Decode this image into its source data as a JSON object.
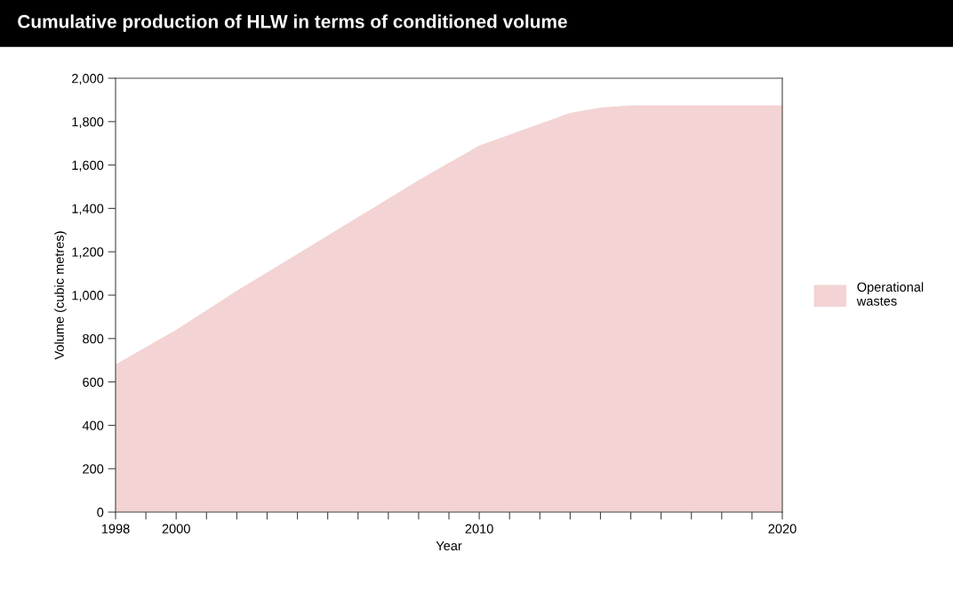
{
  "chart_data": {
    "type": "area",
    "title": "Cumulative production of HLW in terms of conditioned volume",
    "xlabel": "Year",
    "ylabel": "Volume (cubic metres)",
    "x": [
      1998,
      2000,
      2002,
      2004,
      2006,
      2008,
      2010,
      2011,
      2012,
      2013,
      2014,
      2015,
      2020
    ],
    "series": [
      {
        "name": "Operational\nwastes",
        "color": "#f3d3d3",
        "values": [
          680,
          840,
          1020,
          1190,
          1360,
          1530,
          1690,
          1740,
          1790,
          1840,
          1865,
          1875,
          1875
        ]
      }
    ],
    "xlim": [
      1998,
      2020
    ],
    "ylim": [
      0,
      2000
    ],
    "xticks": [
      1998,
      {
        "value": 1999,
        "label": null
      },
      2000,
      {
        "value": 2001,
        "label": null
      },
      {
        "value": 2002,
        "label": null
      },
      {
        "value": 2003,
        "label": null
      },
      {
        "value": 2004,
        "label": null
      },
      {
        "value": 2005,
        "label": null
      },
      {
        "value": 2006,
        "label": null
      },
      {
        "value": 2007,
        "label": null
      },
      {
        "value": 2008,
        "label": null
      },
      {
        "value": 2009,
        "label": null
      },
      2010,
      {
        "value": 2011,
        "label": null
      },
      {
        "value": 2012,
        "label": null
      },
      {
        "value": 2013,
        "label": null
      },
      {
        "value": 2014,
        "label": null
      },
      {
        "value": 2015,
        "label": null
      },
      {
        "value": 2016,
        "label": null
      },
      {
        "value": 2017,
        "label": null
      },
      {
        "value": 2018,
        "label": null
      },
      {
        "value": 2019,
        "label": null
      },
      2020
    ],
    "yticks": [
      {
        "value": 0,
        "label": "0"
      },
      {
        "value": 200,
        "label": "200"
      },
      {
        "value": 400,
        "label": "400"
      },
      {
        "value": 600,
        "label": "600"
      },
      {
        "value": 800,
        "label": "800"
      },
      {
        "value": 1000,
        "label": "1,000"
      },
      {
        "value": 1200,
        "label": "1,200"
      },
      {
        "value": 1400,
        "label": "1,400"
      },
      {
        "value": 1600,
        "label": "1,600"
      },
      {
        "value": 1800,
        "label": "1,800"
      },
      {
        "value": 2000,
        "label": "2,000"
      }
    ],
    "legend": "right",
    "grid": false
  }
}
